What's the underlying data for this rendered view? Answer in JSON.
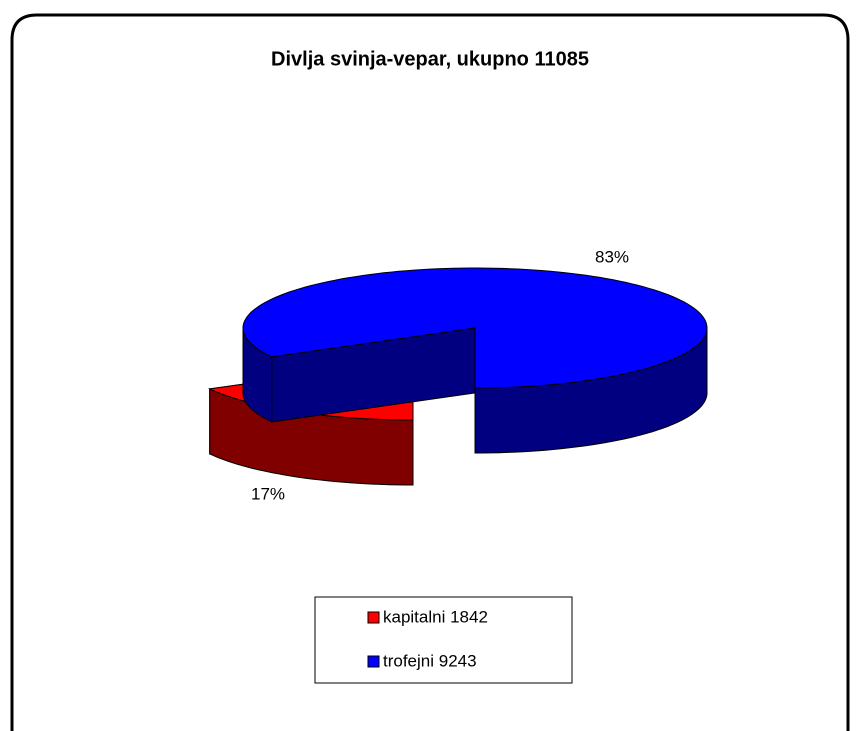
{
  "chart_data": {
    "type": "pie3d",
    "title": "Divlja svinja-vepar, ukupno 11085",
    "categories": [
      "kapitalni 1842",
      "trofejni 9243"
    ],
    "values": [
      17,
      83
    ],
    "value_labels": [
      "17%",
      "83%"
    ],
    "colors": [
      "#ff0000",
      "#0000ff"
    ],
    "legend": "bottom"
  }
}
